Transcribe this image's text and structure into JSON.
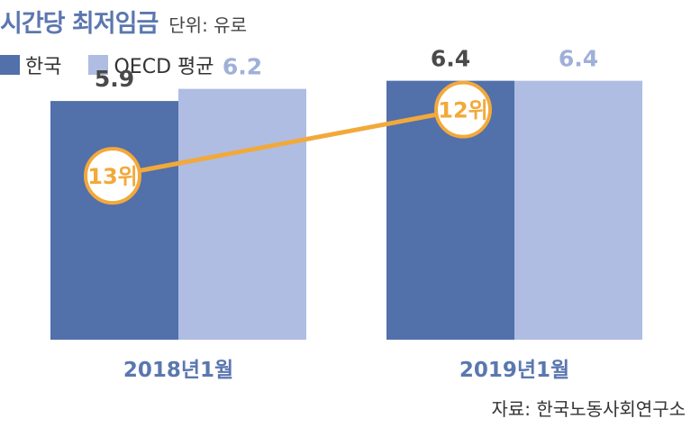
{
  "title": "시간당 최저임금",
  "unit_label": "단위: 유로",
  "source": "자료: 한국노동사회연구소",
  "colors": {
    "korea": "#5270aa",
    "oecd": "#afbde3",
    "rank_line": "#f2a93b",
    "value_korea": "#4a4a4a",
    "value_oecd": "#9fb0d8",
    "category": "#5b77b0"
  },
  "chart_data": {
    "type": "bar",
    "categories": [
      "2018년1월",
      "2019년1월"
    ],
    "series": [
      {
        "name": "한국",
        "values": [
          5.9,
          6.4
        ]
      },
      {
        "name": "OECD 평균",
        "values": [
          6.2,
          6.4
        ]
      }
    ],
    "ylim": [
      0,
      7.6
    ],
    "legend": "top-left",
    "grid": false,
    "annotations": [
      {
        "label": "13위",
        "category": "2018년1월",
        "series": "한국"
      },
      {
        "label": "12위",
        "category": "2019년1월",
        "series": "한국"
      }
    ]
  }
}
